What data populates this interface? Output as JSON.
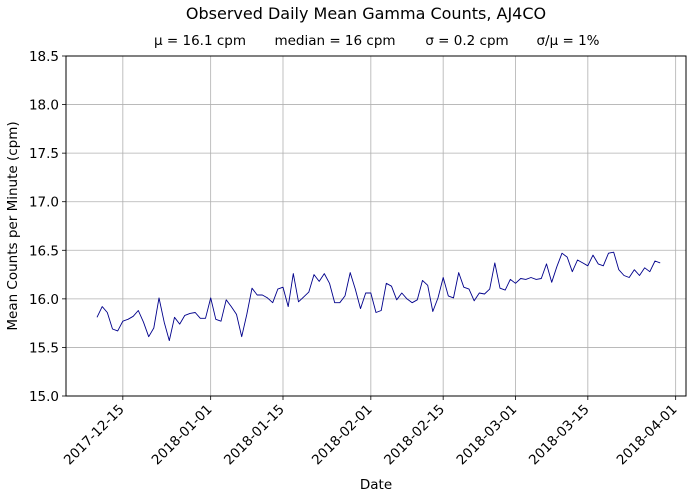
{
  "chart_data": {
    "type": "line",
    "title": "Observed Daily Mean Gamma Counts, AJ4CO",
    "subtitle_stats": [
      "μ = 16.1 cpm",
      "median = 16 cpm",
      "σ = 0.2 cpm",
      "σ/μ = 1%"
    ],
    "xlabel": "Date",
    "ylabel": "Mean Counts per Minute (cpm)",
    "xlim": [
      "2017-12-04",
      "2018-04-03"
    ],
    "ylim": [
      15.0,
      18.5
    ],
    "x_ticks": [
      "2017-12-15",
      "2018-01-01",
      "2018-01-15",
      "2018-02-01",
      "2018-02-15",
      "2018-03-01",
      "2018-03-15",
      "2018-04-01"
    ],
    "y_ticks": [
      "15.0",
      "15.5",
      "16.0",
      "16.5",
      "17.0",
      "17.5",
      "18.0",
      "18.5"
    ],
    "grid": true,
    "line_color": "#00008b",
    "x_start": "2017-12-10",
    "values": [
      15.81,
      15.92,
      15.86,
      15.69,
      15.67,
      15.77,
      15.79,
      15.82,
      15.88,
      15.76,
      15.61,
      15.7,
      16.01,
      15.76,
      15.57,
      15.81,
      15.74,
      15.83,
      15.85,
      15.86,
      15.8,
      15.8,
      16.01,
      15.79,
      15.77,
      15.99,
      15.92,
      15.84,
      15.61,
      15.84,
      16.11,
      16.04,
      16.04,
      16.01,
      15.96,
      16.1,
      16.12,
      15.92,
      16.26,
      15.97,
      16.02,
      16.07,
      16.25,
      16.18,
      16.26,
      16.16,
      15.96,
      15.96,
      16.03,
      16.27,
      16.1,
      15.9,
      16.06,
      16.06,
      15.86,
      15.88,
      16.16,
      16.13,
      15.99,
      16.06,
      16.0,
      15.96,
      15.99,
      16.19,
      16.14,
      15.87,
      16.01,
      16.22,
      16.03,
      16.01,
      16.27,
      16.12,
      16.1,
      15.98,
      16.06,
      16.05,
      16.1,
      16.37,
      16.11,
      16.09,
      16.2,
      16.16,
      16.21,
      16.2,
      16.22,
      16.2,
      16.21,
      16.36,
      16.17,
      16.33,
      16.47,
      16.43,
      16.28,
      16.4,
      16.37,
      16.34,
      16.45,
      16.36,
      16.34,
      16.47,
      16.48,
      16.3,
      16.24,
      16.22,
      16.3,
      16.24,
      16.32,
      16.28,
      16.39,
      16.37
    ]
  }
}
